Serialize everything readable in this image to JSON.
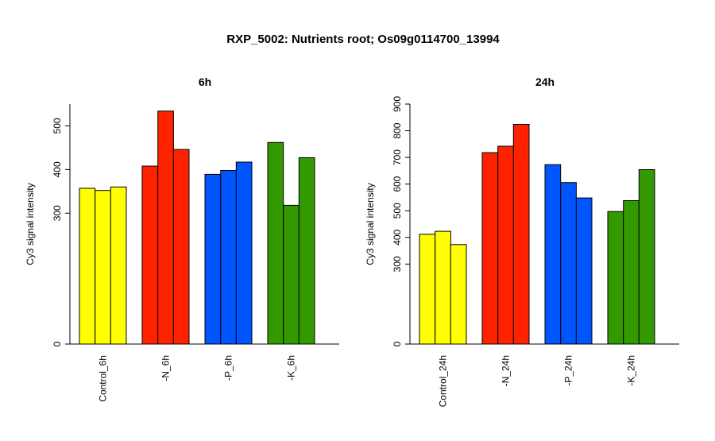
{
  "title": "RXP_5002: Nutrients root; Os09g0114700_13994",
  "colors": {
    "control": "#ffff00",
    "N": "#ff2200",
    "P": "#0055ff",
    "K": "#339900"
  },
  "chart_data": [
    {
      "type": "bar",
      "title": "6h",
      "ylabel": "Cy3 signal intensity",
      "ylim": [
        0,
        550
      ],
      "yticks": [
        0,
        300,
        400,
        500
      ],
      "categories": [
        "Control_6h",
        "-N_6h",
        "-P_6h",
        "-K_6h"
      ],
      "category_colors": [
        "#ffff00",
        "#ff2200",
        "#0055ff",
        "#339900"
      ],
      "values": [
        [
          357,
          352,
          360
        ],
        [
          408,
          534,
          446
        ],
        [
          389,
          398,
          417
        ],
        [
          462,
          318,
          427
        ]
      ],
      "grid": false
    },
    {
      "type": "bar",
      "title": "24h",
      "ylabel": "Cy3 signal intensity",
      "ylim": [
        0,
        900
      ],
      "yticks": [
        0,
        300,
        400,
        500,
        600,
        700,
        800,
        900
      ],
      "categories": [
        "Control_24h",
        "-N_24h",
        "-P_24h",
        "-K_24h"
      ],
      "category_colors": [
        "#ffff00",
        "#ff2200",
        "#0055ff",
        "#339900"
      ],
      "values": [
        [
          412,
          423,
          373
        ],
        [
          718,
          742,
          824
        ],
        [
          673,
          606,
          548
        ],
        [
          497,
          538,
          654
        ]
      ],
      "grid": false
    }
  ]
}
